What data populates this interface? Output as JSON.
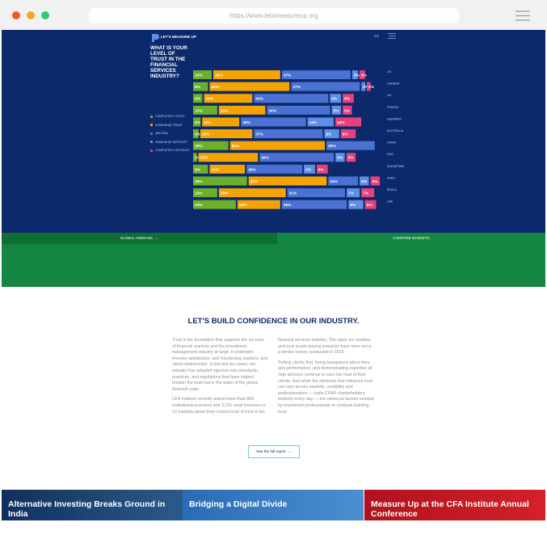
{
  "browser": {
    "url": "https://www.letsmeasureup.org"
  },
  "header": {
    "logo": "LET'S MEASURE UP",
    "language": "EN"
  },
  "chart_data": {
    "type": "stacked-bar",
    "orientation": "horizontal",
    "title": "WHAT IS YOUR LEVEL OF TRUST IN THE FINANCIAL SERVICES INDUSTRY?",
    "categories": [
      "US",
      "CANADA",
      "UK",
      "FRANCE",
      "GERMANY",
      "AUSTRALIA",
      "CHINA",
      "HKG",
      "SINGAPORE",
      "INDIA",
      "BRAZIL",
      "UAE"
    ],
    "series": [
      {
        "name": "COMPLETELY TRUST",
        "color": "#6cb02a",
        "values": [
          10,
          8,
          5,
          13,
          4,
          3,
          19,
          2,
          8,
          29,
          13,
          23
        ],
        "value_labels": [
          "10%",
          "8%",
          "5%",
          "13%",
          "4%",
          "3%",
          "19%",
          "2%",
          "8%",
          "29%",
          "13%",
          "23%"
        ]
      },
      {
        "name": "SOMEWHAT TRUST",
        "color": "#f5a300",
        "values": [
          36,
          43,
          26,
          25,
          20,
          28,
          51,
          32,
          19,
          42,
          36,
          23
        ],
        "value_labels": [
          "36%",
          "43%",
          "26%",
          "25%",
          "20%",
          "28%",
          "51%",
          "32%",
          "19%",
          "42%",
          "36%",
          "23%"
        ]
      },
      {
        "name": "NEUTRAL",
        "color": "#4a72d3",
        "values": [
          37,
          37,
          40,
          34,
          35,
          37,
          26,
          40,
          30,
          16,
          31,
          35
        ],
        "value_labels": [
          "37%",
          "37%",
          "40%",
          "34%",
          "35%",
          "37%",
          "26%",
          "40%",
          "30%",
          "16%",
          "31%",
          "35%"
        ]
      },
      {
        "name": "SOMEWHAT DISTRUST",
        "color": "#5f8ee6",
        "values": [
          3,
          2,
          6,
          5,
          14,
          8,
          null,
          5,
          6,
          5,
          7,
          8
        ],
        "value_labels": [
          "3%",
          "2%",
          "6%",
          "5%",
          "14%",
          "8%",
          null,
          "5%",
          "6%",
          "5%",
          "7%",
          "8%"
        ]
      },
      {
        "name": "COMPLETELY DISTRUST",
        "color": "#e8407c",
        "values": [
          3,
          2,
          6,
          5,
          14,
          8,
          null,
          5,
          6,
          5,
          7,
          6
        ],
        "value_labels": [
          "3%",
          "2%",
          "6%",
          "5%",
          "14%",
          "8%",
          null,
          "5%",
          "6%",
          "5%",
          "7%",
          "6%"
        ]
      }
    ]
  },
  "tabs": [
    "GLOBAL AVERAGE",
    "COMPARE MARKETS"
  ],
  "intro": {
    "heading": "LET'S BUILD CONFIDENCE IN OUR INDUSTRY.",
    "paragraphs": [
      "Trust is the foundation that supports the success of financial markets and the investment management industry at large. It underpins investor satisfaction, well-functioning markets, and client relationships. In the last ten years, our industry has adopted rigorous new standards, practices, and regulations that have helped reclaim the trust lost in the wake of the global financial crisis.",
      "CFA Institute recently asked more than 800 institutional investors and 3,100 retail investors in 12 markets about their current level of trust in the financial services industry. The signs are positive, and trust levels among investors have risen since a similar survey conducted in 2016.",
      "Putting clients first, being transparent about fees and performance, and demonstrating expertise all help advisers continue to earn the trust of their clients. And while the elements that influence trust can vary across markets, credibility and professionalism — traits CFA® charterholders embody every day — are universal factors needed by investment professionals to continue building trust."
    ],
    "button": "See the full report"
  },
  "cards": [
    "Alternative Investing Breaks Ground in India",
    "Bridging a Digital Divide",
    "Measure Up at the CFA Institute Annual Conference"
  ]
}
